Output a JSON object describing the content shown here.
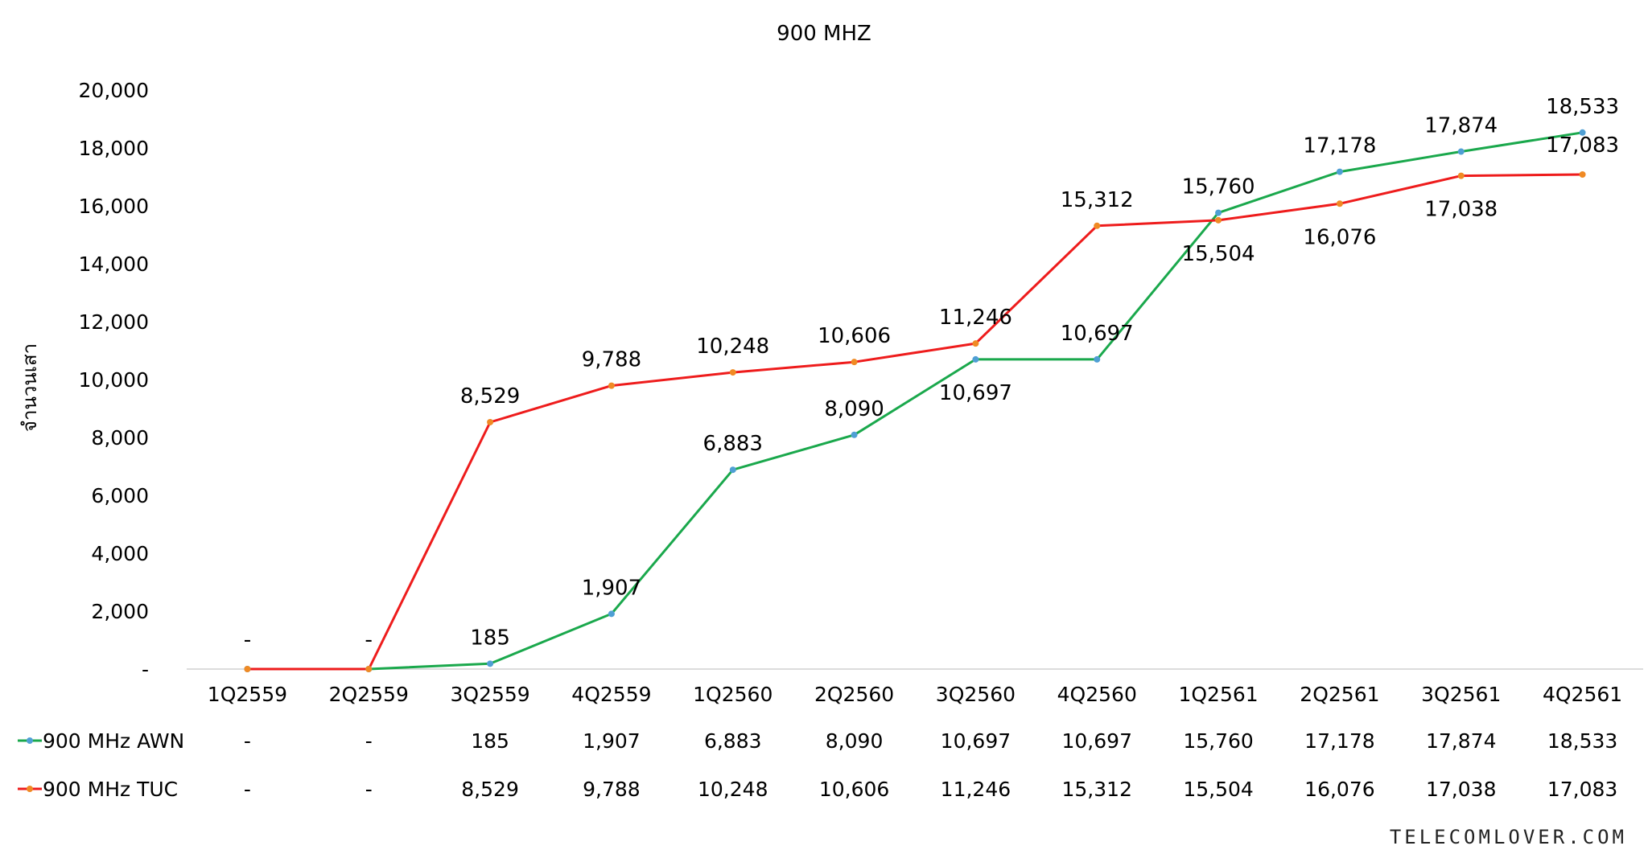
{
  "chart_data": {
    "type": "line",
    "title": "900 MHZ",
    "ylabel": "จำนวนเสา",
    "xlabel": "",
    "categories": [
      "1Q2559",
      "2Q2559",
      "3Q2559",
      "4Q2559",
      "1Q2560",
      "2Q2560",
      "3Q2560",
      "4Q2560",
      "1Q2561",
      "2Q2561",
      "3Q2561",
      "4Q2561"
    ],
    "ylim": [
      0,
      20000
    ],
    "yticks": [
      0,
      2000,
      4000,
      6000,
      8000,
      10000,
      12000,
      14000,
      16000,
      18000,
      20000
    ],
    "ytick_labels": [
      "-",
      "2,000",
      "4,000",
      "6,000",
      "8,000",
      "10,000",
      "12,000",
      "14,000",
      "16,000",
      "18,000",
      "20,000"
    ],
    "grid": false,
    "legend": "data-table-below",
    "series": [
      {
        "name": "900 MHz AWN",
        "color": "#1aa84c",
        "marker_color": "#4f9fd4",
        "values": [
          0,
          0,
          185,
          1907,
          6883,
          8090,
          10697,
          10697,
          15760,
          17178,
          17874,
          18533
        ],
        "labels": [
          "-",
          "-",
          "185",
          "1,907",
          "6,883",
          "8,090",
          "10,697",
          "10,697",
          "15,760",
          "17,178",
          "17,874",
          "18,533"
        ]
      },
      {
        "name": "900 MHz TUC",
        "color": "#ee1c1c",
        "marker_color": "#f08a24",
        "values": [
          0,
          0,
          8529,
          9788,
          10248,
          10606,
          11246,
          15312,
          15504,
          16076,
          17038,
          17083
        ],
        "labels": [
          "-",
          "-",
          "8,529",
          "9,788",
          "10,248",
          "10,606",
          "11,246",
          "15,312",
          "15,504",
          "16,076",
          "17,038",
          "17,083"
        ]
      }
    ]
  },
  "watermark": "TELECOMLOVER.COM"
}
